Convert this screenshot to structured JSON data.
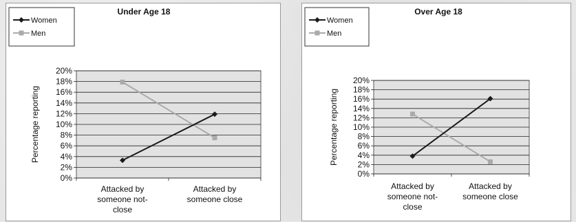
{
  "colors": {
    "women": "#1a1a1a",
    "men": "#aaaaaa",
    "plot_bg": "#e2e2e2",
    "grid": "#222222"
  },
  "chart_data": [
    {
      "type": "line",
      "title": "Under Age 18",
      "ylabel": "Percentage reporting",
      "ylim": [
        0,
        20
      ],
      "yticks": [
        "0%",
        "2%",
        "4%",
        "6%",
        "8%",
        "10%",
        "12%",
        "14%",
        "16%",
        "18%",
        "20%"
      ],
      "categories": [
        [
          "Attacked by",
          "someone not-",
          "close"
        ],
        [
          "Attacked by",
          "someone close"
        ]
      ],
      "series": [
        {
          "name": "Women",
          "values": [
            3.3,
            11.9
          ],
          "marker": "diamond",
          "color": "#1a1a1a"
        },
        {
          "name": "Men",
          "values": [
            17.9,
            7.5
          ],
          "marker": "square",
          "color": "#aaaaaa"
        }
      ],
      "legend": "top-left",
      "grid": true
    },
    {
      "type": "line",
      "title": "Over Age 18",
      "ylabel": "Percentage reporting",
      "ylim": [
        0,
        20
      ],
      "yticks": [
        "0%",
        "2%",
        "4%",
        "6%",
        "8%",
        "10%",
        "12%",
        "14%",
        "16%",
        "18%",
        "20%"
      ],
      "categories": [
        [
          "Attacked by",
          "someone not-",
          "close"
        ],
        [
          "Attacked by",
          "someone close"
        ]
      ],
      "series": [
        {
          "name": "Women",
          "values": [
            3.8,
            16.1
          ],
          "marker": "diamond",
          "color": "#1a1a1a"
        },
        {
          "name": "Men",
          "values": [
            12.8,
            2.6
          ],
          "marker": "square",
          "color": "#aaaaaa"
        }
      ],
      "legend": "top-left",
      "grid": true
    }
  ]
}
